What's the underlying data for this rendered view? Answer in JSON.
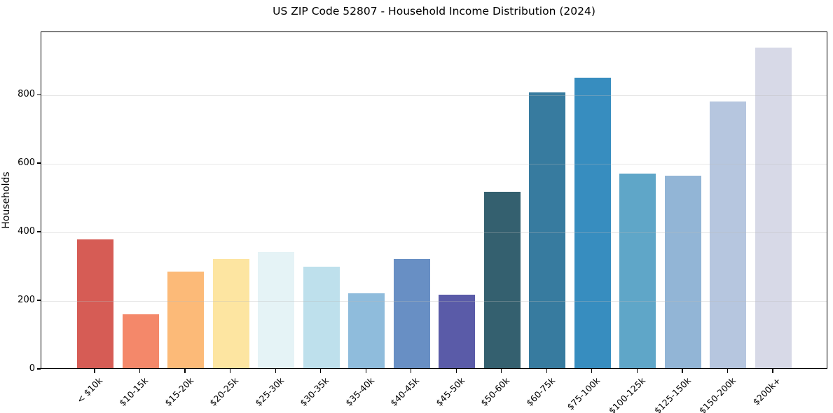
{
  "chart_data": {
    "type": "bar",
    "title": "US ZIP Code 52807 - Household Income Distribution (2024)",
    "xlabel": "",
    "ylabel": "Households",
    "ylim": [
      0,
      984
    ],
    "yticks": [
      0,
      200,
      400,
      600,
      800
    ],
    "grid": "horizontal",
    "legend": "none",
    "categories": [
      "< $10k",
      "$10-15k",
      "$15-20k",
      "$20-25k",
      "$25-30k",
      "$30-35k",
      "$35-40k",
      "$40-45k",
      "$45-50k",
      "$50-60k",
      "$60-75k",
      "$75-100k",
      "$100-125k",
      "$125-150k",
      "$150-200k",
      "$200k+"
    ],
    "values": [
      375,
      157,
      282,
      318,
      339,
      296,
      219,
      319,
      214,
      514,
      804,
      847,
      567,
      562,
      777,
      936
    ],
    "bar_colors": [
      "#d65c55",
      "#f4886a",
      "#fcba78",
      "#fde5a1",
      "#e5f3f6",
      "#bee0ec",
      "#8fbcdc",
      "#688fc4",
      "#5a5ba8",
      "#34606f",
      "#377b9f",
      "#378dbf",
      "#5fa6c8",
      "#92b5d6",
      "#b6c6df",
      "#d7d9e7"
    ]
  }
}
